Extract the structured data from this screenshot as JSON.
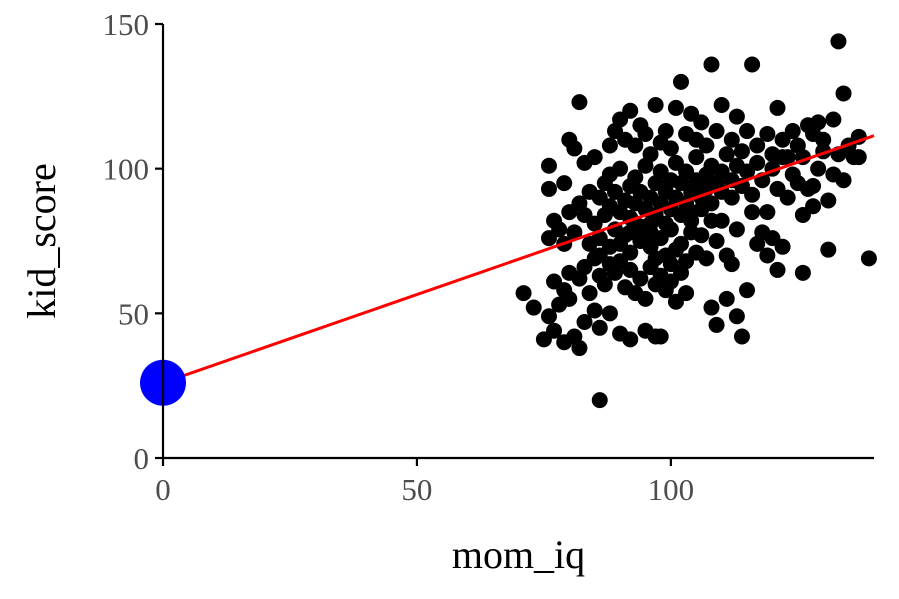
{
  "chart_data": {
    "type": "scatter",
    "xlabel": "mom_iq",
    "ylabel": "kid_score",
    "xlim": [
      0,
      140
    ],
    "ylim": [
      0,
      150
    ],
    "x_ticks": [
      0,
      50,
      100
    ],
    "y_ticks": [
      0,
      50,
      100,
      150
    ],
    "x_tick_labels": [
      "0",
      "50",
      "100"
    ],
    "y_tick_labels": [
      "0",
      "50",
      "100",
      "150"
    ],
    "grid": false,
    "colors": {
      "points": "#000000",
      "fit_line": "#ff0000",
      "intercept_point": "#0000ff"
    },
    "fit_line": {
      "intercept": 26,
      "slope": 0.61
    },
    "intercept_point": {
      "x": 0,
      "y": 26
    },
    "points": [
      [
        86.0,
        20.0
      ],
      [
        71.0,
        57.0
      ],
      [
        73.0,
        52.0
      ],
      [
        75.0,
        41.0
      ],
      [
        76.0,
        49.0
      ],
      [
        77.0,
        44.0
      ],
      [
        78.0,
        53.0
      ],
      [
        79.0,
        40.0
      ],
      [
        80.0,
        55.0
      ],
      [
        81.0,
        42.0
      ],
      [
        82.0,
        38.0
      ],
      [
        83.0,
        47.0
      ],
      [
        85.0,
        51.0
      ],
      [
        86.0,
        45.0
      ],
      [
        88.0,
        50.0
      ],
      [
        90.0,
        43.0
      ],
      [
        92.0,
        41.0
      ],
      [
        95.0,
        44.0
      ],
      [
        97.0,
        42.0
      ],
      [
        98.0,
        42.0
      ],
      [
        77.0,
        61.0
      ],
      [
        79.0,
        58.0
      ],
      [
        80.0,
        64.0
      ],
      [
        82.0,
        62.0
      ],
      [
        83.0,
        66.0
      ],
      [
        84.0,
        57.0
      ],
      [
        85.0,
        69.0
      ],
      [
        86.0,
        63.0
      ],
      [
        87.0,
        60.0
      ],
      [
        88.0,
        67.0
      ],
      [
        89.0,
        64.0
      ],
      [
        90.0,
        68.0
      ],
      [
        91.0,
        59.0
      ],
      [
        92.0,
        65.0
      ],
      [
        93.0,
        57.0
      ],
      [
        94.0,
        62.0
      ],
      [
        95.0,
        55.0
      ],
      [
        96.0,
        66.0
      ],
      [
        97.0,
        60.0
      ],
      [
        98.0,
        63.0
      ],
      [
        99.0,
        58.0
      ],
      [
        100.0,
        61.0
      ],
      [
        101.0,
        54.0
      ],
      [
        102.0,
        64.0
      ],
      [
        103.0,
        57.0
      ],
      [
        108.0,
        52.0
      ],
      [
        109.0,
        46.0
      ],
      [
        111.0,
        55.0
      ],
      [
        113.0,
        49.0
      ],
      [
        114.0,
        42.0
      ],
      [
        115.0,
        58.0
      ],
      [
        117.0,
        74.0
      ],
      [
        119.0,
        70.0
      ],
      [
        121.0,
        65.0
      ],
      [
        122.0,
        73.0
      ],
      [
        126.0,
        64.0
      ],
      [
        131.0,
        72.0
      ],
      [
        139.0,
        69.0
      ],
      [
        99.0,
        70.0
      ],
      [
        101.0,
        72.0
      ],
      [
        103.0,
        68.0
      ],
      [
        105.0,
        71.0
      ],
      [
        107.0,
        69.0
      ],
      [
        109.0,
        75.0
      ],
      [
        111.0,
        70.0
      ],
      [
        112.0,
        67.0
      ],
      [
        76.0,
        76.0
      ],
      [
        77.0,
        82.0
      ],
      [
        78.0,
        79.0
      ],
      [
        79.0,
        74.0
      ],
      [
        80.0,
        85.0
      ],
      [
        81.0,
        78.0
      ],
      [
        82.0,
        88.0
      ],
      [
        83.0,
        84.0
      ],
      [
        84.0,
        92.0
      ],
      [
        85.0,
        81.0
      ],
      [
        86.0,
        90.0
      ],
      [
        86.0,
        76.0
      ],
      [
        87.0,
        95.0
      ],
      [
        87.0,
        84.0
      ],
      [
        88.0,
        87.0
      ],
      [
        88.0,
        98.0
      ],
      [
        89.0,
        79.0
      ],
      [
        89.0,
        92.0
      ],
      [
        90.0,
        85.0
      ],
      [
        90.0,
        100.0
      ],
      [
        91.0,
        89.0
      ],
      [
        91.0,
        77.0
      ],
      [
        92.0,
        94.0
      ],
      [
        92.0,
        83.0
      ],
      [
        93.0,
        97.0
      ],
      [
        93.0,
        88.0
      ],
      [
        94.0,
        80.0
      ],
      [
        94.0,
        92.0
      ],
      [
        95.0,
        86.0
      ],
      [
        95.0,
        101.0
      ],
      [
        96.0,
        90.0
      ],
      [
        96.0,
        78.0
      ],
      [
        97.0,
        95.0
      ],
      [
        97.0,
        84.0
      ],
      [
        98.0,
        88.0
      ],
      [
        98.0,
        99.0
      ],
      [
        99.0,
        92.0
      ],
      [
        99.0,
        81.0
      ],
      [
        100.0,
        96.0
      ],
      [
        100.0,
        86.0
      ],
      [
        101.0,
        90.0
      ],
      [
        101.0,
        102.0
      ],
      [
        102.0,
        84.0
      ],
      [
        102.0,
        95.0
      ],
      [
        103.0,
        88.0
      ],
      [
        103.0,
        99.0
      ],
      [
        104.0,
        92.0
      ],
      [
        104.0,
        82.0
      ],
      [
        105.0,
        96.0
      ],
      [
        105.0,
        104.0
      ],
      [
        106.0,
        90.0
      ],
      [
        106.0,
        86.0
      ],
      [
        107.0,
        98.0
      ],
      [
        107.0,
        93.0
      ],
      [
        108.0,
        101.0
      ],
      [
        108.0,
        88.0
      ],
      [
        109.0,
        95.0
      ],
      [
        110.0,
        92.0
      ],
      [
        110.0,
        99.0
      ],
      [
        111.0,
        105.0
      ],
      [
        112.0,
        96.0
      ],
      [
        112.0,
        90.0
      ],
      [
        113.0,
        101.0
      ],
      [
        114.0,
        94.0
      ],
      [
        115.0,
        99.0
      ],
      [
        116.0,
        91.0
      ],
      [
        117.0,
        102.0
      ],
      [
        118.0,
        96.0
      ],
      [
        119.0,
        85.0
      ],
      [
        120.0,
        100.0
      ],
      [
        121.0,
        93.0
      ],
      [
        122.0,
        104.0
      ],
      [
        124.0,
        98.0
      ],
      [
        125.0,
        95.0
      ],
      [
        126.0,
        104.0
      ],
      [
        127.0,
        93.0
      ],
      [
        128.0,
        87.0
      ],
      [
        129.0,
        100.0
      ],
      [
        130.0,
        106.0
      ],
      [
        131.0,
        89.0
      ],
      [
        132.0,
        98.0
      ],
      [
        133.0,
        105.0
      ],
      [
        134.0,
        96.0
      ],
      [
        135.0,
        108.0
      ],
      [
        136.0,
        104.0
      ],
      [
        76.0,
        93.0
      ],
      [
        76.0,
        101.0
      ],
      [
        79.0,
        95.0
      ],
      [
        80.0,
        110.0
      ],
      [
        81.0,
        107.0
      ],
      [
        82.0,
        123.0
      ],
      [
        83.0,
        102.0
      ],
      [
        85.0,
        104.0
      ],
      [
        88.0,
        108.0
      ],
      [
        89.0,
        113.0
      ],
      [
        90.0,
        117.0
      ],
      [
        91.0,
        110.0
      ],
      [
        92.0,
        120.0
      ],
      [
        93.0,
        108.0
      ],
      [
        94.0,
        115.0
      ],
      [
        95.0,
        112.0
      ],
      [
        96.0,
        105.0
      ],
      [
        97.0,
        122.0
      ],
      [
        98.0,
        109.0
      ],
      [
        99.0,
        113.0
      ],
      [
        100.0,
        107.0
      ],
      [
        101.0,
        121.0
      ],
      [
        102.0,
        130.0
      ],
      [
        103.0,
        112.0
      ],
      [
        104.0,
        119.0
      ],
      [
        105.0,
        110.0
      ],
      [
        106.0,
        116.0
      ],
      [
        107.0,
        108.0
      ],
      [
        108.0,
        136.0
      ],
      [
        109.0,
        113.0
      ],
      [
        110.0,
        122.0
      ],
      [
        112.0,
        110.0
      ],
      [
        113.0,
        118.0
      ],
      [
        114.0,
        106.0
      ],
      [
        115.0,
        113.0
      ],
      [
        116.0,
        136.0
      ],
      [
        117.0,
        108.0
      ],
      [
        119.0,
        112.0
      ],
      [
        120.0,
        105.0
      ],
      [
        121.0,
        121.0
      ],
      [
        122.0,
        110.0
      ],
      [
        123.0,
        104.0
      ],
      [
        124.0,
        113.0
      ],
      [
        125.0,
        108.0
      ],
      [
        127.0,
        115.0
      ],
      [
        128.0,
        112.0
      ],
      [
        129.0,
        116.0
      ],
      [
        130.0,
        110.0
      ],
      [
        132.0,
        117.0
      ],
      [
        133.0,
        144.0
      ],
      [
        134.0,
        126.0
      ],
      [
        137.0,
        111.0
      ],
      [
        84.0,
        74.0
      ],
      [
        86.0,
        70.0
      ],
      [
        88.0,
        73.0
      ],
      [
        90.0,
        74.0
      ],
      [
        92.0,
        71.0
      ],
      [
        94.0,
        75.0
      ],
      [
        96.0,
        73.0
      ],
      [
        97.0,
        69.0
      ],
      [
        98.0,
        76.0
      ],
      [
        100.0,
        67.0
      ],
      [
        102.0,
        74.0
      ],
      [
        104.0,
        78.0
      ],
      [
        106.0,
        77.0
      ],
      [
        110.0,
        82.0
      ],
      [
        113.0,
        79.0
      ],
      [
        116.0,
        85.0
      ],
      [
        118.0,
        78.0
      ],
      [
        120.0,
        76.0
      ],
      [
        123.0,
        90.0
      ],
      [
        126.0,
        84.0
      ],
      [
        128.0,
        94.0
      ],
      [
        137.0,
        104.0
      ],
      [
        92.0,
        78.0
      ],
      [
        96.0,
        81.0
      ],
      [
        100.0,
        79.0
      ],
      [
        104.0,
        85.0
      ],
      [
        108.0,
        82.0
      ]
    ]
  }
}
